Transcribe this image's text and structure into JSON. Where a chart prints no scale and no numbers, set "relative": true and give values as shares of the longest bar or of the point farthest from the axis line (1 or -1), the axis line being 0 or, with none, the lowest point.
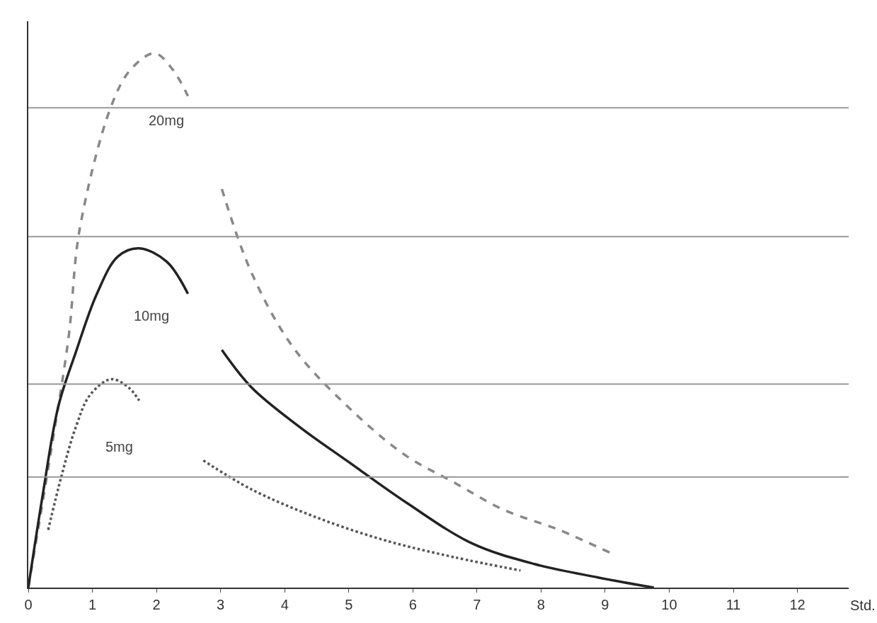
{
  "chart_data": {
    "type": "line",
    "relative": true,
    "xlabel": "Std.",
    "xlim": [
      0,
      12.8
    ],
    "xticks": [
      0,
      1,
      2,
      3,
      4,
      5,
      6,
      7,
      8,
      9,
      10,
      11,
      12
    ],
    "legend": false,
    "marker": "none",
    "series": [
      {
        "name": "20mg",
        "color": "#888888",
        "line_style": "dashed",
        "x": [
          0,
          0.36,
          0.63,
          0.8,
          1.29,
          1.6,
          1.97,
          2.25,
          2.49,
          2.75,
          3.02,
          3.48,
          4.13,
          5.0,
          5.88,
          6.64,
          7.41,
          8.28,
          9.1
        ],
        "values": [
          0,
          0.26,
          0.47,
          0.67,
          0.9,
          0.97,
          1.0,
          0.97,
          0.92,
          null,
          0.746,
          0.59,
          0.45,
          0.337,
          0.248,
          0.197,
          0.146,
          0.108,
          0.064
        ]
      },
      {
        "name": "10mg",
        "color": "#222222",
        "line_style": "solid",
        "x": [
          0,
          0.22,
          0.47,
          0.74,
          1.07,
          1.4,
          1.73,
          2.16,
          2.49,
          2.75,
          3.02,
          3.48,
          4.24,
          5.0,
          5.9,
          6.92,
          7.9,
          8.89,
          9.76
        ],
        "values": [
          0,
          0.17,
          0.34,
          0.44,
          0.55,
          0.62,
          0.635,
          0.61,
          0.55,
          null,
          0.445,
          0.375,
          0.3,
          0.235,
          0.159,
          0.083,
          0.044,
          0.019,
          0
        ]
      },
      {
        "name": "5mg",
        "color": "#555555",
        "line_style": "dotted",
        "x": [
          0.31,
          0.52,
          0.74,
          0.96,
          1.29,
          1.56,
          1.73,
          2.2,
          2.73,
          3.48,
          4.46,
          5.55,
          6.64,
          7.68
        ],
        "values": [
          0.108,
          0.21,
          0.3,
          0.36,
          0.39,
          0.375,
          0.35,
          null,
          0.238,
          0.184,
          0.133,
          0.089,
          0.057,
          0.032
        ]
      }
    ],
    "ref_lines": [
      {
        "axis": "y",
        "value": 0.898,
        "color": "#999999"
      },
      {
        "axis": "y",
        "value": 0.657,
        "color": "#999999"
      },
      {
        "axis": "y",
        "value": 0.381,
        "color": "#999999"
      },
      {
        "axis": "y",
        "value": 0.207,
        "color": "#999999"
      }
    ]
  }
}
